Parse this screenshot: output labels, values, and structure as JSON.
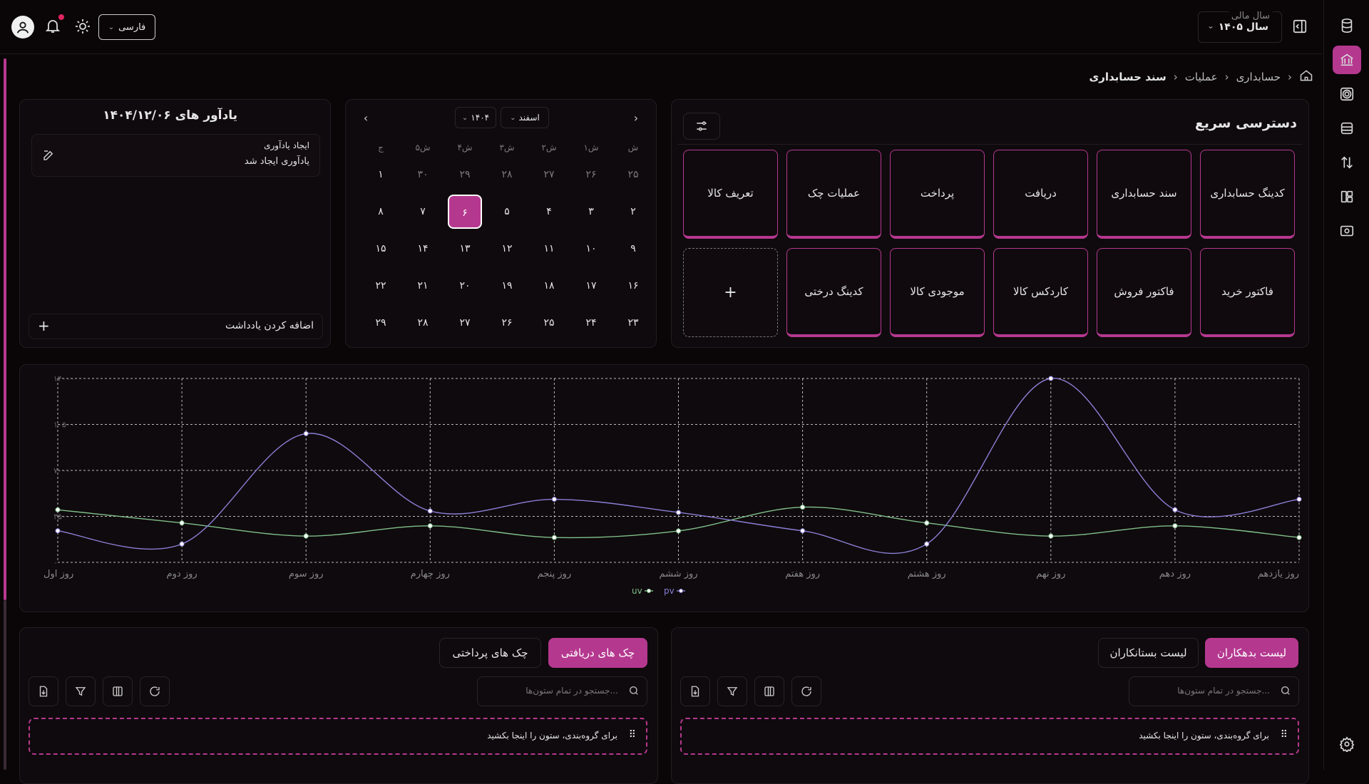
{
  "topbar": {
    "language": "فارسی",
    "fiscal_label": "سال مالی",
    "fiscal_value": "سال ۱۴۰۵"
  },
  "breadcrumb": [
    "حسابداری",
    "عملیات",
    "سند حسابداری"
  ],
  "quick": {
    "title": "دسترسی سریع",
    "row1": [
      "کدینگ حسابداری",
      "سند حسابداری",
      "دریافت",
      "پرداخت",
      "عملیات چک",
      "تعریف کالا"
    ],
    "row2": [
      "فاکتور خرید",
      "فاکتور فروش",
      "کاردکس کالا",
      "موجودی کالا",
      "کدینگ درختی"
    ],
    "add": "+"
  },
  "calendar": {
    "month": "اسفند",
    "year": "۱۴۰۴",
    "weekdays": [
      "ش",
      "۱ش",
      "۲ش",
      "۳ش",
      "۴ش",
      "۵ش",
      "ج"
    ],
    "weeks": [
      [
        "۲۵",
        "۲۶",
        "۲۷",
        "۲۸",
        "۲۹",
        "۳۰",
        "۱"
      ],
      [
        "۲",
        "۳",
        "۴",
        "۵",
        "۶",
        "۷",
        "۸"
      ],
      [
        "۹",
        "۱۰",
        "۱۱",
        "۱۲",
        "۱۳",
        "۱۴",
        "۱۵"
      ],
      [
        "۱۶",
        "۱۷",
        "۱۸",
        "۱۹",
        "۲۰",
        "۲۱",
        "۲۲"
      ],
      [
        "۲۳",
        "۲۴",
        "۲۵",
        "۲۶",
        "۲۷",
        "۲۸",
        "۲۹"
      ]
    ],
    "selected": "۶"
  },
  "reminders": {
    "title": "یادآور های ۱۴۰۴/۱۲/۰۶",
    "item_title": "ایجاد یادآوری",
    "item_body": "یادآوری ایجاد شد",
    "add_label": "اضافه کردن یادداشت"
  },
  "chart_data": {
    "type": "line",
    "categories": [
      "روز اول",
      "روز دوم",
      "روز سوم",
      "روز چهارم",
      "روز پنجم",
      "روز ششم",
      "روز هفتم",
      "روز هشتم",
      "روز نهم",
      "روز دهم",
      "روز یازدهم"
    ],
    "series": [
      {
        "name": "uv",
        "values": [
          4000,
          3000,
          2000,
          2780,
          1890,
          2390,
          4200,
          3000,
          2000,
          2780,
          1890
        ]
      },
      {
        "name": "pv",
        "values": [
          2400,
          1398,
          9800,
          3908,
          4800,
          3800,
          2400,
          1400,
          14000,
          4000,
          4800
        ]
      }
    ],
    "ylim": [
      0,
      14000
    ],
    "yticks": [
      "۰",
      "۳۵۰۰",
      "۷۰۰۰",
      "۱۰۵۰۰",
      "۱۴۰۰۰"
    ],
    "colors": {
      "uv": "#7fbf8a",
      "pv": "#8b7fd6"
    },
    "legend": "bottom-center",
    "grid": true
  },
  "left_table": {
    "tabs": [
      "چک های دریافتی",
      "چک های پرداختی"
    ],
    "search_placeholder": "جستجو در تمام ستون‌ها...",
    "group_hint": "برای گروه‌بندی، ستون را اینجا بکشید"
  },
  "right_table": {
    "tabs": [
      "لیست بدهکاران",
      "لیست بستانکاران"
    ],
    "search_placeholder": "جستجو در تمام ستون‌ها...",
    "group_hint": "برای گروه‌بندی، ستون را اینجا بکشید"
  },
  "colors": {
    "accent": "#b5388f",
    "background": "#0a0608"
  }
}
